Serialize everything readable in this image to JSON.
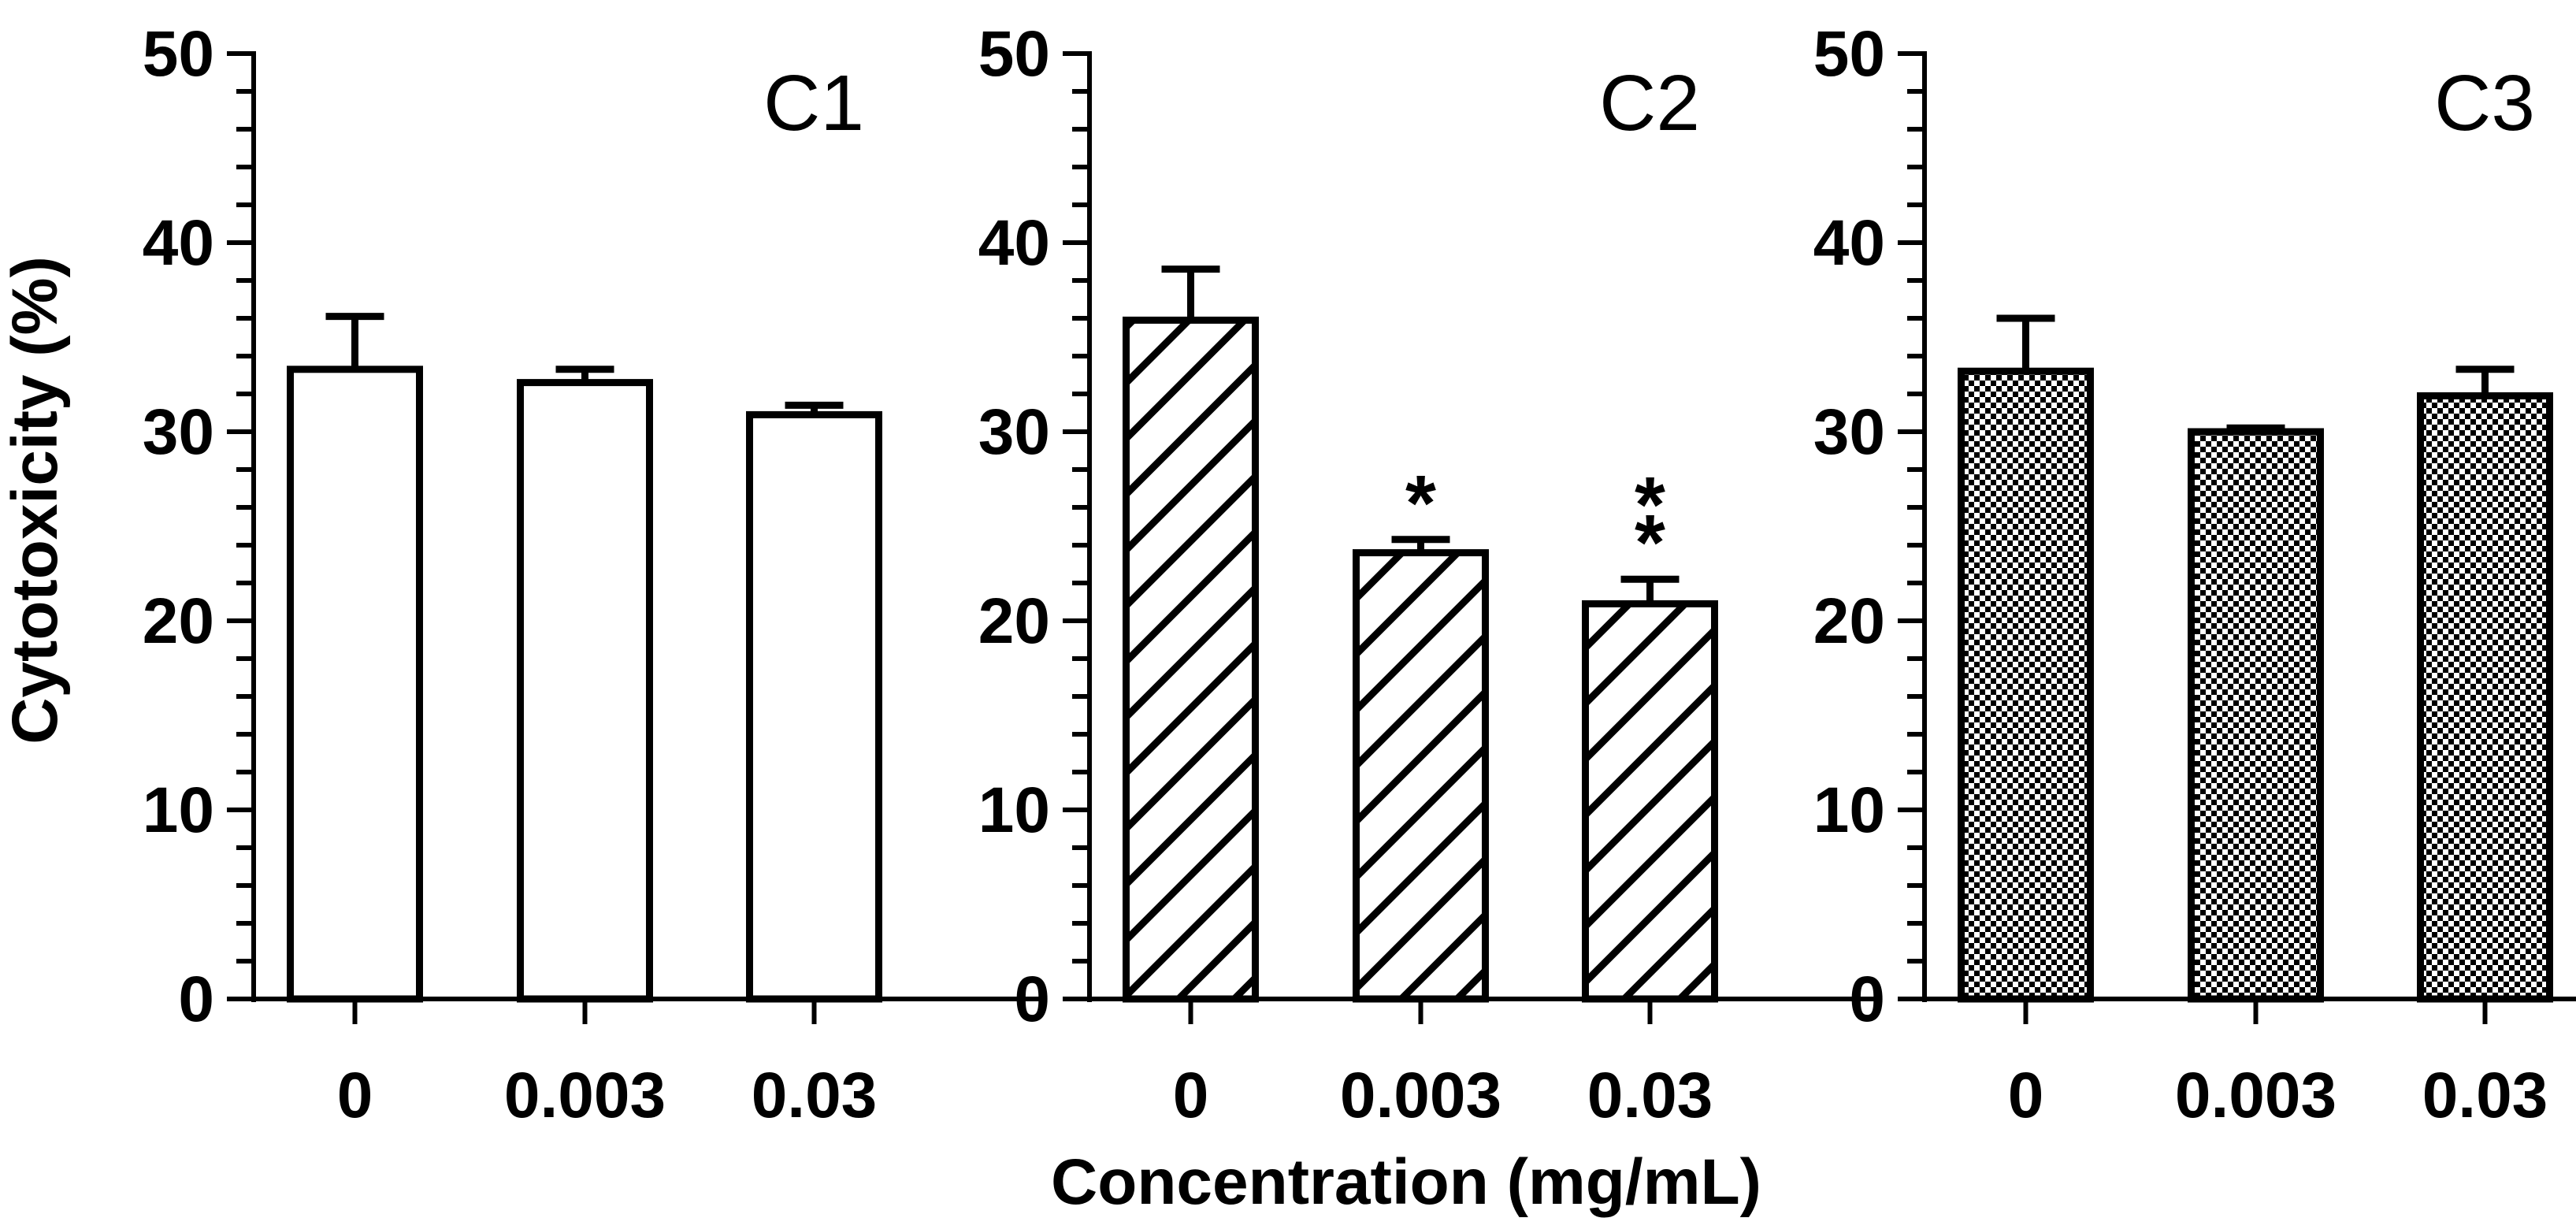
{
  "figure": {
    "ylabel": "Cytotoxicity (%)",
    "xlabel": "Concentration (mg/mL)"
  },
  "chart_data": [
    {
      "type": "bar",
      "title": "C1",
      "pattern": "blank",
      "categories": [
        "0",
        "0.003",
        "0.03"
      ],
      "values": [
        33.3,
        32.6,
        30.9
      ],
      "errors": [
        2.8,
        0.7,
        0.5
      ],
      "annotations": [
        "",
        "",
        ""
      ],
      "ylim": [
        0,
        50
      ],
      "yticks": [
        "0",
        "10",
        "20",
        "30",
        "40",
        "50"
      ],
      "ylabel": "Cytotoxicity (%)",
      "xlabel": ""
    },
    {
      "type": "bar",
      "title": "C2",
      "pattern": "diagonal-hatch",
      "categories": [
        "0",
        "0.003",
        "0.03"
      ],
      "values": [
        35.9,
        23.6,
        20.9
      ],
      "errors": [
        2.7,
        0.7,
        1.3
      ],
      "annotations": [
        "",
        "*",
        "**"
      ],
      "ylim": [
        0,
        50
      ],
      "yticks": [
        "0",
        "10",
        "20",
        "30",
        "40",
        "50"
      ],
      "ylabel": "",
      "xlabel": "Concentration (mg/mL)"
    },
    {
      "type": "bar",
      "title": "C3",
      "pattern": "checkered",
      "categories": [
        "0",
        "0.003",
        "0.03"
      ],
      "values": [
        33.2,
        30.0,
        31.9
      ],
      "errors": [
        2.8,
        0.2,
        1.4
      ],
      "annotations": [
        "",
        "",
        ""
      ],
      "ylim": [
        0,
        50
      ],
      "yticks": [
        "0",
        "10",
        "20",
        "30",
        "40",
        "50"
      ],
      "ylabel": "",
      "xlabel": ""
    }
  ],
  "colors": {
    "ink": "#000000",
    "background": "#ffffff"
  }
}
